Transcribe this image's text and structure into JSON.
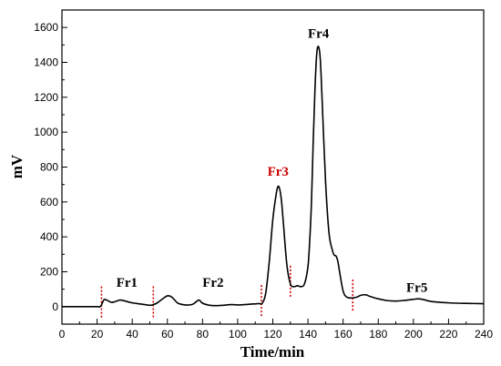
{
  "chart_data": {
    "type": "line",
    "title": "",
    "xlabel": "Time/min",
    "ylabel": "mV",
    "xlim": [
      0,
      240
    ],
    "ylim": [
      -100,
      1700
    ],
    "xticks": [
      0,
      20,
      40,
      60,
      80,
      100,
      120,
      140,
      160,
      180,
      200,
      220,
      240
    ],
    "yticks": [
      0,
      200,
      400,
      600,
      800,
      1000,
      1200,
      1400,
      1600
    ],
    "line_color": "#000000",
    "divider_color": "#cc0000",
    "series": [
      {
        "x": [
          0,
          10,
          20,
          22,
          24,
          26,
          28,
          30,
          33,
          36,
          40,
          45,
          50,
          52,
          54,
          56,
          58,
          60,
          62,
          64,
          66,
          70,
          74,
          76,
          78,
          80,
          84,
          88,
          92,
          96,
          100,
          104,
          108,
          110,
          112,
          114,
          116,
          118,
          120,
          122,
          123,
          124,
          125,
          126,
          128,
          130,
          132,
          134,
          136,
          138,
          140,
          141,
          142,
          143,
          144,
          145,
          146,
          147,
          148,
          150,
          152,
          154,
          155,
          156,
          157,
          158,
          160,
          162,
          165,
          168,
          170,
          173,
          175,
          180,
          185,
          190,
          195,
          200,
          203,
          206,
          210,
          215,
          220,
          225,
          230,
          235,
          240
        ],
        "y": [
          0,
          0,
          0,
          2,
          40,
          35,
          25,
          28,
          38,
          32,
          22,
          15,
          8,
          12,
          20,
          35,
          50,
          62,
          58,
          40,
          20,
          10,
          12,
          25,
          38,
          20,
          8,
          6,
          8,
          12,
          10,
          12,
          15,
          16,
          18,
          20,
          80,
          260,
          500,
          650,
          690,
          670,
          600,
          480,
          240,
          130,
          115,
          120,
          115,
          130,
          230,
          380,
          600,
          950,
          1250,
          1450,
          1490,
          1420,
          1200,
          720,
          420,
          320,
          295,
          290,
          260,
          200,
          90,
          55,
          50,
          55,
          65,
          68,
          60,
          45,
          35,
          32,
          36,
          42,
          45,
          40,
          30,
          25,
          22,
          20,
          19,
          18,
          17
        ]
      }
    ],
    "dividers": [
      22.5,
      52,
      113.5,
      130,
      165.5
    ],
    "annotations": [
      {
        "text": "Fr1",
        "x": 37,
        "y": 115,
        "color": "#000000"
      },
      {
        "text": "Fr2",
        "x": 86,
        "y": 115,
        "color": "#000000"
      },
      {
        "text": "Fr3",
        "x": 123,
        "y": 750,
        "color": "#cc0000"
      },
      {
        "text": "Fr4",
        "x": 146,
        "y": 1540,
        "color": "#000000"
      },
      {
        "text": "Fr5",
        "x": 202,
        "y": 85,
        "color": "#000000"
      }
    ]
  }
}
